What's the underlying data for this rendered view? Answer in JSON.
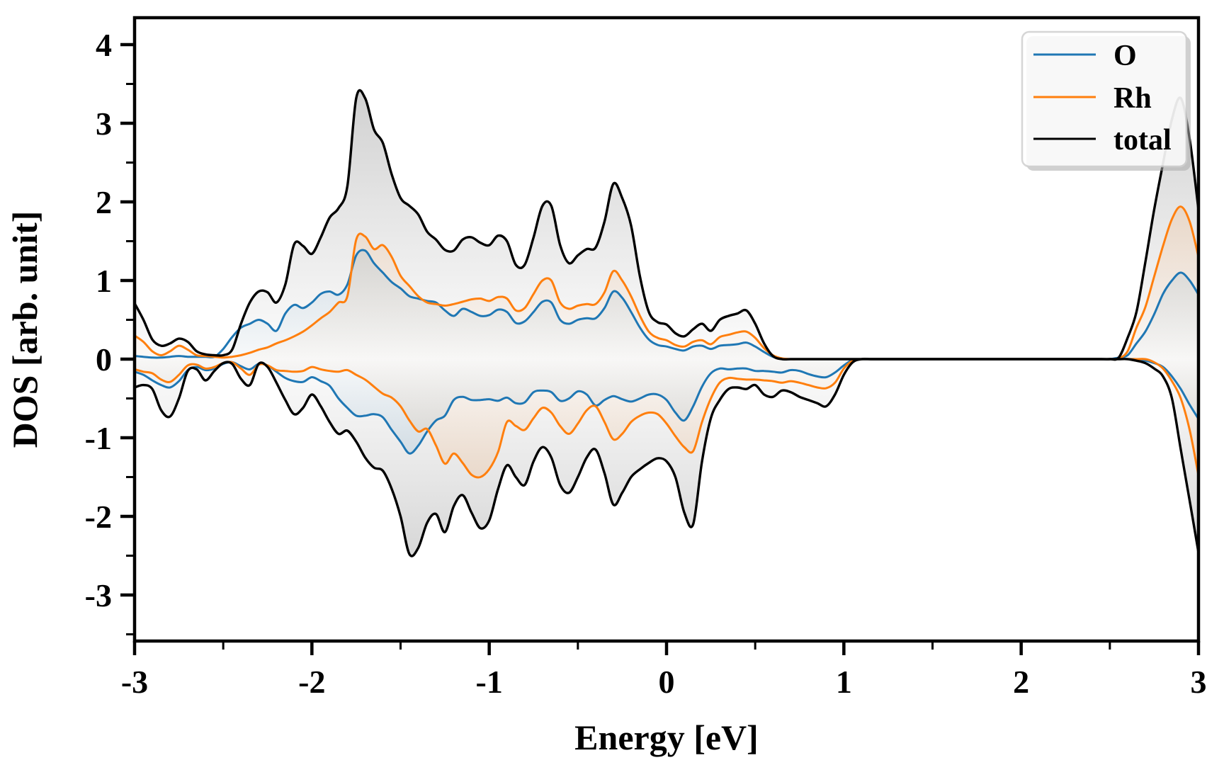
{
  "chart_data": {
    "type": "line",
    "title": "",
    "xlabel": "Energy [eV]",
    "ylabel": "DOS [arb. unit]",
    "xlim": [
      -3,
      3
    ],
    "ylim": [
      -3.6,
      4.34
    ],
    "xticks": [
      -3,
      -2,
      -1,
      0,
      1,
      2,
      3
    ],
    "yticks": [
      -3,
      -2,
      -1,
      0,
      1,
      2,
      3,
      4
    ],
    "minor_tick_interval": 0.5,
    "grid": false,
    "legend": {
      "position": "upper right",
      "entries": [
        "O",
        "Rh",
        "total"
      ]
    },
    "x_start": -3.0,
    "x_step": 0.05,
    "series": [
      {
        "name": "O",
        "color": "#1f77b4",
        "fill_max_alpha": 0.34,
        "spin_up": [
          0.04,
          0.03,
          0.02,
          0.02,
          0.03,
          0.04,
          0.03,
          0.03,
          0.03,
          0.03,
          0.13,
          0.28,
          0.4,
          0.45,
          0.5,
          0.45,
          0.36,
          0.58,
          0.69,
          0.65,
          0.72,
          0.83,
          0.86,
          0.82,
          0.95,
          1.32,
          1.38,
          1.22,
          1.1,
          0.98,
          0.9,
          0.8,
          0.77,
          0.74,
          0.72,
          0.62,
          0.55,
          0.64,
          0.6,
          0.55,
          0.56,
          0.63,
          0.6,
          0.46,
          0.48,
          0.6,
          0.73,
          0.72,
          0.5,
          0.45,
          0.5,
          0.52,
          0.52,
          0.65,
          0.86,
          0.78,
          0.6,
          0.4,
          0.25,
          0.18,
          0.16,
          0.13,
          0.11,
          0.16,
          0.17,
          0.13,
          0.17,
          0.18,
          0.19,
          0.21,
          0.16,
          0.09,
          0.03,
          0,
          0,
          0,
          0,
          0,
          0,
          0,
          0,
          0,
          0,
          0,
          0,
          0,
          0,
          0,
          0,
          0,
          0,
          0,
          0,
          0,
          0,
          0,
          0,
          0,
          0,
          0,
          0,
          0,
          0,
          0,
          0,
          0,
          0,
          0,
          0,
          0,
          0,
          0.02,
          0.05,
          0.2,
          0.35,
          0.57,
          0.83,
          1.0,
          1.1,
          1.0,
          0.82
        ],
        "spin_down": [
          -0.16,
          -0.2,
          -0.27,
          -0.33,
          -0.36,
          -0.28,
          -0.14,
          -0.1,
          -0.14,
          -0.12,
          -0.06,
          -0.04,
          -0.09,
          -0.13,
          -0.06,
          -0.08,
          -0.16,
          -0.24,
          -0.28,
          -0.29,
          -0.23,
          -0.28,
          -0.34,
          -0.5,
          -0.62,
          -0.72,
          -0.72,
          -0.7,
          -0.74,
          -0.9,
          -1.05,
          -1.2,
          -1.1,
          -0.92,
          -0.78,
          -0.72,
          -0.52,
          -0.48,
          -0.52,
          -0.52,
          -0.51,
          -0.53,
          -0.49,
          -0.56,
          -0.55,
          -0.42,
          -0.4,
          -0.42,
          -0.53,
          -0.5,
          -0.41,
          -0.45,
          -0.59,
          -0.52,
          -0.47,
          -0.51,
          -0.54,
          -0.5,
          -0.45,
          -0.45,
          -0.52,
          -0.68,
          -0.78,
          -0.6,
          -0.35,
          -0.18,
          -0.12,
          -0.13,
          -0.12,
          -0.12,
          -0.15,
          -0.15,
          -0.16,
          -0.17,
          -0.14,
          -0.15,
          -0.19,
          -0.22,
          -0.23,
          -0.17,
          -0.08,
          -0.01,
          0,
          0,
          0,
          0,
          0,
          0,
          0,
          0,
          0,
          0,
          0,
          0,
          0,
          0,
          0,
          0,
          0,
          0,
          0,
          0,
          0,
          0,
          0,
          0,
          0,
          0,
          0,
          0,
          0,
          0,
          0,
          0,
          -0.02,
          -0.05,
          -0.1,
          -0.22,
          -0.38,
          -0.58,
          -0.76
        ]
      },
      {
        "name": "Rh",
        "color": "#ff7f0e",
        "fill_max_alpha": 0.3,
        "spin_up": [
          0.3,
          0.22,
          0.1,
          0.05,
          0.1,
          0.17,
          0.12,
          0.05,
          0.04,
          0.03,
          0.02,
          0.03,
          0.05,
          0.08,
          0.12,
          0.15,
          0.2,
          0.24,
          0.29,
          0.35,
          0.43,
          0.52,
          0.6,
          0.72,
          0.8,
          1.52,
          1.56,
          1.4,
          1.45,
          1.3,
          1.06,
          0.93,
          0.8,
          0.72,
          0.7,
          0.68,
          0.7,
          0.73,
          0.76,
          0.77,
          0.74,
          0.79,
          0.77,
          0.62,
          0.65,
          0.83,
          1.0,
          1.0,
          0.72,
          0.64,
          0.68,
          0.7,
          0.7,
          0.85,
          1.12,
          1.0,
          0.8,
          0.55,
          0.35,
          0.27,
          0.24,
          0.18,
          0.16,
          0.22,
          0.24,
          0.19,
          0.28,
          0.31,
          0.34,
          0.35,
          0.27,
          0.14,
          0.05,
          0.01,
          0,
          0,
          0,
          0,
          0,
          0,
          0,
          0,
          0,
          0,
          0,
          0,
          0,
          0,
          0,
          0,
          0,
          0,
          0,
          0,
          0,
          0,
          0,
          0,
          0,
          0,
          0,
          0,
          0,
          0,
          0,
          0,
          0,
          0,
          0,
          0,
          0,
          0.01,
          0.1,
          0.4,
          0.66,
          1.05,
          1.44,
          1.78,
          1.94,
          1.75,
          1.3
        ],
        "spin_down": [
          -0.13,
          -0.16,
          -0.18,
          -0.26,
          -0.29,
          -0.2,
          -0.08,
          -0.07,
          -0.12,
          -0.1,
          -0.05,
          -0.04,
          -0.12,
          -0.2,
          -0.07,
          -0.08,
          -0.14,
          -0.15,
          -0.16,
          -0.15,
          -0.1,
          -0.13,
          -0.15,
          -0.16,
          -0.14,
          -0.2,
          -0.26,
          -0.35,
          -0.44,
          -0.49,
          -0.6,
          -0.78,
          -0.92,
          -0.89,
          -1.1,
          -1.33,
          -1.2,
          -1.32,
          -1.47,
          -1.5,
          -1.4,
          -1.18,
          -0.8,
          -0.85,
          -0.9,
          -0.75,
          -0.62,
          -0.68,
          -0.85,
          -0.95,
          -0.82,
          -0.65,
          -0.6,
          -0.8,
          -1.02,
          -0.95,
          -0.8,
          -0.72,
          -0.68,
          -0.7,
          -0.82,
          -0.98,
          -1.12,
          -1.17,
          -0.8,
          -0.5,
          -0.3,
          -0.24,
          -0.25,
          -0.26,
          -0.26,
          -0.27,
          -0.28,
          -0.3,
          -0.28,
          -0.3,
          -0.33,
          -0.36,
          -0.37,
          -0.3,
          -0.12,
          -0.02,
          0,
          0,
          0,
          0,
          0,
          0,
          0,
          0,
          0,
          0,
          0,
          0,
          0,
          0,
          0,
          0,
          0,
          0,
          0,
          0,
          0,
          0,
          0,
          0,
          0,
          0,
          0,
          0,
          0,
          0,
          0,
          0,
          0,
          -0.04,
          -0.12,
          -0.28,
          -0.5,
          -0.9,
          -1.48
        ]
      },
      {
        "name": "total",
        "color": "#000000",
        "fill_color": "#737373",
        "fill_max_alpha": 0.42,
        "spin_up": [
          0.71,
          0.5,
          0.25,
          0.17,
          0.2,
          0.26,
          0.22,
          0.1,
          0.06,
          0.05,
          0.05,
          0.12,
          0.45,
          0.72,
          0.86,
          0.85,
          0.72,
          0.95,
          1.46,
          1.44,
          1.34,
          1.55,
          1.8,
          1.92,
          2.2,
          3.32,
          3.32,
          2.92,
          2.75,
          2.35,
          2.05,
          1.95,
          1.84,
          1.62,
          1.52,
          1.39,
          1.38,
          1.52,
          1.55,
          1.48,
          1.45,
          1.57,
          1.5,
          1.2,
          1.2,
          1.55,
          1.95,
          1.95,
          1.45,
          1.22,
          1.32,
          1.4,
          1.42,
          1.75,
          2.23,
          2.05,
          1.7,
          1.05,
          0.6,
          0.47,
          0.44,
          0.33,
          0.29,
          0.38,
          0.45,
          0.36,
          0.5,
          0.55,
          0.58,
          0.62,
          0.45,
          0.2,
          0.04,
          0,
          0,
          0,
          0,
          0,
          0,
          0,
          0,
          0,
          0,
          0,
          0,
          0,
          0,
          0,
          0,
          0,
          0,
          0,
          0,
          0,
          0,
          0,
          0,
          0,
          0,
          0,
          0,
          0,
          0,
          0,
          0,
          0,
          0,
          0,
          0,
          0,
          0,
          0.02,
          0.27,
          0.6,
          1.23,
          1.9,
          2.49,
          3.05,
          3.32,
          2.8,
          1.9
        ],
        "spin_down": [
          -0.36,
          -0.33,
          -0.38,
          -0.65,
          -0.73,
          -0.5,
          -0.15,
          -0.13,
          -0.27,
          -0.15,
          -0.05,
          -0.06,
          -0.25,
          -0.33,
          -0.06,
          -0.1,
          -0.3,
          -0.52,
          -0.7,
          -0.62,
          -0.45,
          -0.6,
          -0.8,
          -0.95,
          -0.91,
          -1.05,
          -1.25,
          -1.38,
          -1.42,
          -1.65,
          -2.0,
          -2.48,
          -2.4,
          -2.08,
          -1.97,
          -2.2,
          -1.87,
          -1.73,
          -1.95,
          -2.15,
          -2.05,
          -1.65,
          -1.35,
          -1.5,
          -1.6,
          -1.3,
          -1.12,
          -1.25,
          -1.6,
          -1.7,
          -1.5,
          -1.25,
          -1.15,
          -1.45,
          -1.85,
          -1.7,
          -1.5,
          -1.4,
          -1.32,
          -1.26,
          -1.3,
          -1.5,
          -1.95,
          -2.1,
          -1.3,
          -0.75,
          -0.52,
          -0.38,
          -0.36,
          -0.38,
          -0.33,
          -0.45,
          -0.48,
          -0.4,
          -0.42,
          -0.48,
          -0.52,
          -0.56,
          -0.6,
          -0.45,
          -0.2,
          -0.04,
          0,
          0,
          0,
          0,
          0,
          0,
          0,
          0,
          0,
          0,
          0,
          0,
          0,
          0,
          0,
          0,
          0,
          0,
          0,
          0,
          0,
          0,
          0,
          0,
          0,
          0,
          0,
          0,
          0,
          0,
          0,
          -0.02,
          -0.05,
          -0.12,
          -0.22,
          -0.5,
          -1.15,
          -1.8,
          -2.46
        ]
      }
    ]
  }
}
